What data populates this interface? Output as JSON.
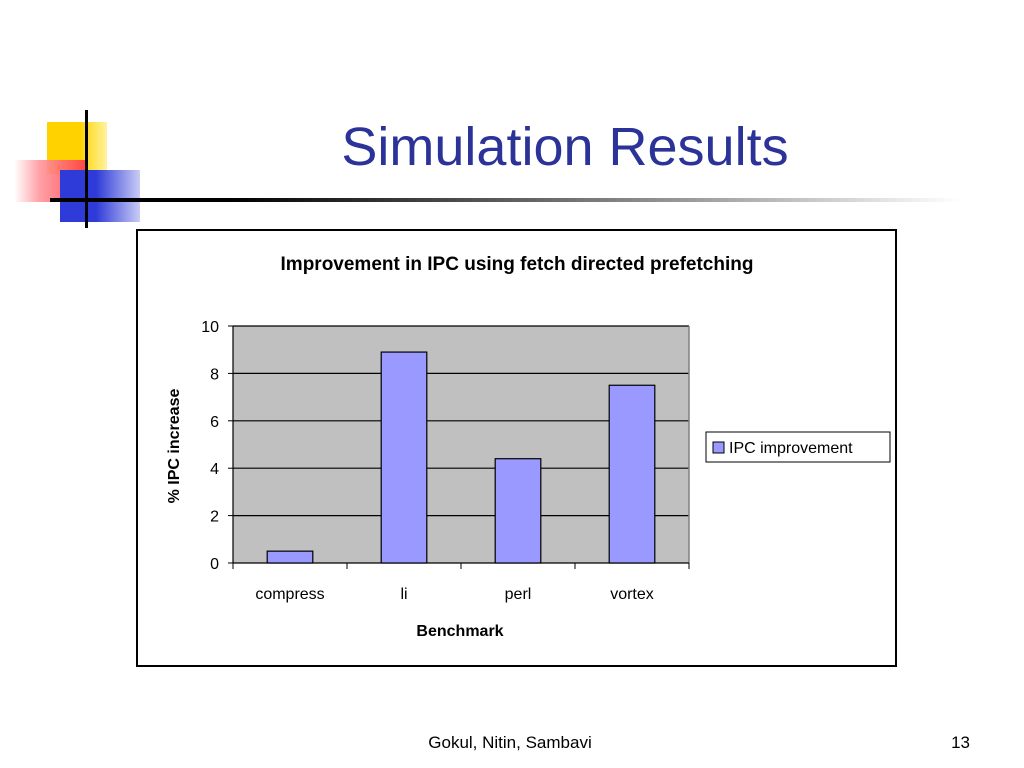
{
  "slide": {
    "title": "Simulation Results",
    "footer_authors": "Gokul, Nitin, Sambavi",
    "page_number": "13"
  },
  "colors": {
    "title": "#2b3399",
    "plot_background": "#c0c0c0",
    "bar_fill": "#9999ff",
    "bar_stroke": "#000000"
  },
  "chart_data": {
    "type": "bar",
    "title": "Improvement in IPC using fetch directed prefetching",
    "xlabel": "Benchmark",
    "ylabel": "% IPC increase",
    "categories": [
      "compress",
      "li",
      "perl",
      "vortex"
    ],
    "series": [
      {
        "name": "IPC improvement",
        "values": [
          0.5,
          8.9,
          4.4,
          7.5
        ]
      }
    ],
    "ylim": [
      0,
      10
    ],
    "yticks": [
      "0",
      "2",
      "4",
      "6",
      "8",
      "10"
    ],
    "grid": true,
    "legend": "right"
  }
}
